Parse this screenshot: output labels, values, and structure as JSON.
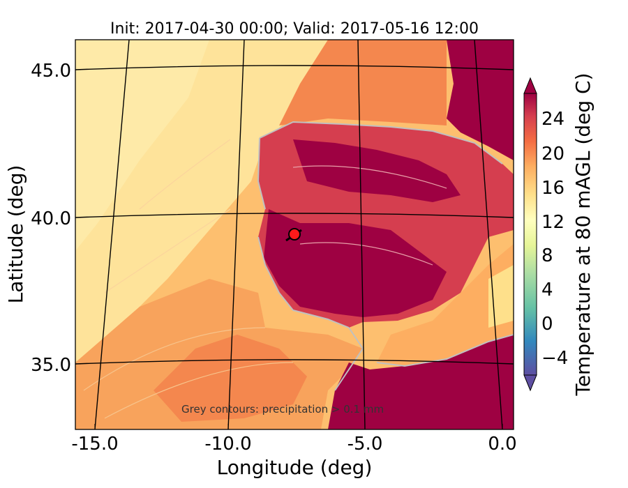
{
  "chart_data": {
    "type": "heatmap",
    "title": "Init: 2017-04-30 00:00; Valid: 2017-05-16 12:00",
    "xlabel": "Longitude (deg)",
    "ylabel": "Latitude (deg)",
    "x_ticks": [
      "-15.0",
      "-10.0",
      "-5.0",
      "0.0"
    ],
    "y_ticks": [
      "45.0",
      "40.0",
      "35.0"
    ],
    "xlim": [
      -16,
      0
    ],
    "ylim": [
      33,
      46
    ],
    "colorbar": {
      "label": "Temperature at 80 mAGL (deg C)",
      "ticks": [
        "24",
        "20",
        "16",
        "12",
        "8",
        "4",
        "0",
        "−4"
      ],
      "range": [
        -6,
        26
      ],
      "colormap": "Spectral_r",
      "extend": "both"
    },
    "annotation": "Grey contours: precipitation > 0.1 mm",
    "marker": {
      "lon": -7.6,
      "lat": 39.3,
      "color": "#ff1a1a"
    },
    "colors": {
      "hot": "#9e0142",
      "warm": "#d53e4f",
      "orange": "#f46d43",
      "light_orange": "#fdae61",
      "pale": "#fee08b",
      "contour_grey": "#c0c0c0"
    }
  }
}
